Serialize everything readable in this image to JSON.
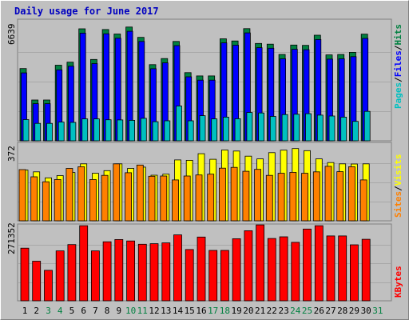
{
  "chart_data": {
    "type": "bar",
    "title": "Daily usage for June 2017",
    "categories": [
      "1",
      "2",
      "3",
      "4",
      "5",
      "6",
      "7",
      "8",
      "9",
      "10",
      "11",
      "12",
      "13",
      "14",
      "15",
      "16",
      "17",
      "18",
      "19",
      "20",
      "21",
      "22",
      "23",
      "24",
      "25",
      "26",
      "27",
      "28",
      "29",
      "30",
      "31"
    ],
    "weekend_days": [
      "3",
      "4",
      "10",
      "11",
      "17",
      "18",
      "24",
      "25",
      "31"
    ],
    "legend": {
      "upper": [
        {
          "label": "Pages",
          "color": "#00c0c0"
        },
        {
          "label": "/",
          "color": "#000000"
        },
        {
          "label": "Files",
          "color": "#0000ff"
        },
        {
          "label": "/",
          "color": "#000000"
        },
        {
          "label": "Hits",
          "color": "#008040"
        }
      ],
      "middle": [
        {
          "label": "Sites",
          "color": "#ff8000"
        },
        {
          "label": "/",
          "color": "#000000"
        },
        {
          "label": "Visits",
          "color": "#ffff00"
        }
      ],
      "lower": [
        {
          "label": "KBytes",
          "color": "#ff0000"
        }
      ]
    },
    "panels": [
      {
        "id": "upper",
        "ymax_label": "6639",
        "ylim": [
          0,
          6639
        ],
        "series": [
          {
            "name": "Hits",
            "color": "#008040",
            "values": [
              4050,
              2290,
              2290,
              4240,
              4410,
              6280,
              4560,
              6240,
              5990,
              6380,
              5800,
              4270,
              4610,
              5570,
              3820,
              3640,
              3640,
              5720,
              5600,
              6290,
              5460,
              5420,
              4840,
              5370,
              5350,
              5920,
              4820,
              4840,
              4960,
              5980,
              null
            ]
          },
          {
            "name": "Files",
            "color": "#0000ff",
            "values": [
              3810,
              2080,
              2080,
              3980,
              4180,
              6040,
              4330,
              6000,
              5750,
              6140,
              5570,
              4040,
              4370,
              5340,
              3590,
              3400,
              3400,
              5490,
              5360,
              6050,
              5220,
              5190,
              4600,
              5130,
              5110,
              5680,
              4580,
              4600,
              4720,
              5740,
              null
            ]
          },
          {
            "name": "Pages",
            "color": "#00c0c0",
            "values": [
              1190,
              980,
              980,
              1050,
              1030,
              1230,
              1230,
              1180,
              1170,
              1150,
              1260,
              1070,
              1120,
              1950,
              1120,
              1410,
              1230,
              1330,
              1240,
              1590,
              1560,
              1370,
              1470,
              1490,
              1520,
              1440,
              1390,
              1330,
              1090,
              1650,
              null
            ]
          }
        ]
      },
      {
        "id": "middle",
        "ymax_label": "372",
        "ylim": [
          0,
          372
        ],
        "series": [
          {
            "name": "Visits",
            "color": "#ffff00",
            "values": [
              246,
              237,
              208,
              219,
              234,
              276,
              230,
              243,
              276,
              254,
              260,
              221,
              226,
              295,
              293,
              325,
              298,
              343,
              338,
              313,
              300,
              330,
              342,
              350,
              340,
              300,
              282,
              276,
              275,
              276,
              null
            ]
          },
          {
            "name": "Sites",
            "color": "#ff8000",
            "values": [
              248,
              213,
              189,
              200,
              254,
              262,
              200,
              220,
              276,
              233,
              270,
              216,
              217,
              198,
              217,
              222,
              226,
              255,
              259,
              240,
              249,
              220,
              230,
              235,
              230,
              237,
              264,
              238,
              262,
              198,
              null
            ]
          }
        ]
      },
      {
        "id": "lower",
        "ymax_label": "271352",
        "ylim": [
          0,
          271352
        ],
        "series": [
          {
            "name": "KBytes",
            "color": "#ff0000",
            "values": [
              190000,
              143000,
              110000,
              180000,
              203000,
              271000,
              180000,
              213000,
              221000,
              216000,
              204000,
              206000,
              209000,
              238000,
              185000,
              230000,
              182000,
              182000,
              224000,
              253000,
              274000,
              225000,
              231000,
              211000,
              259000,
              271000,
              234000,
              234000,
              202000,
              222000,
              null
            ]
          }
        ]
      }
    ]
  }
}
